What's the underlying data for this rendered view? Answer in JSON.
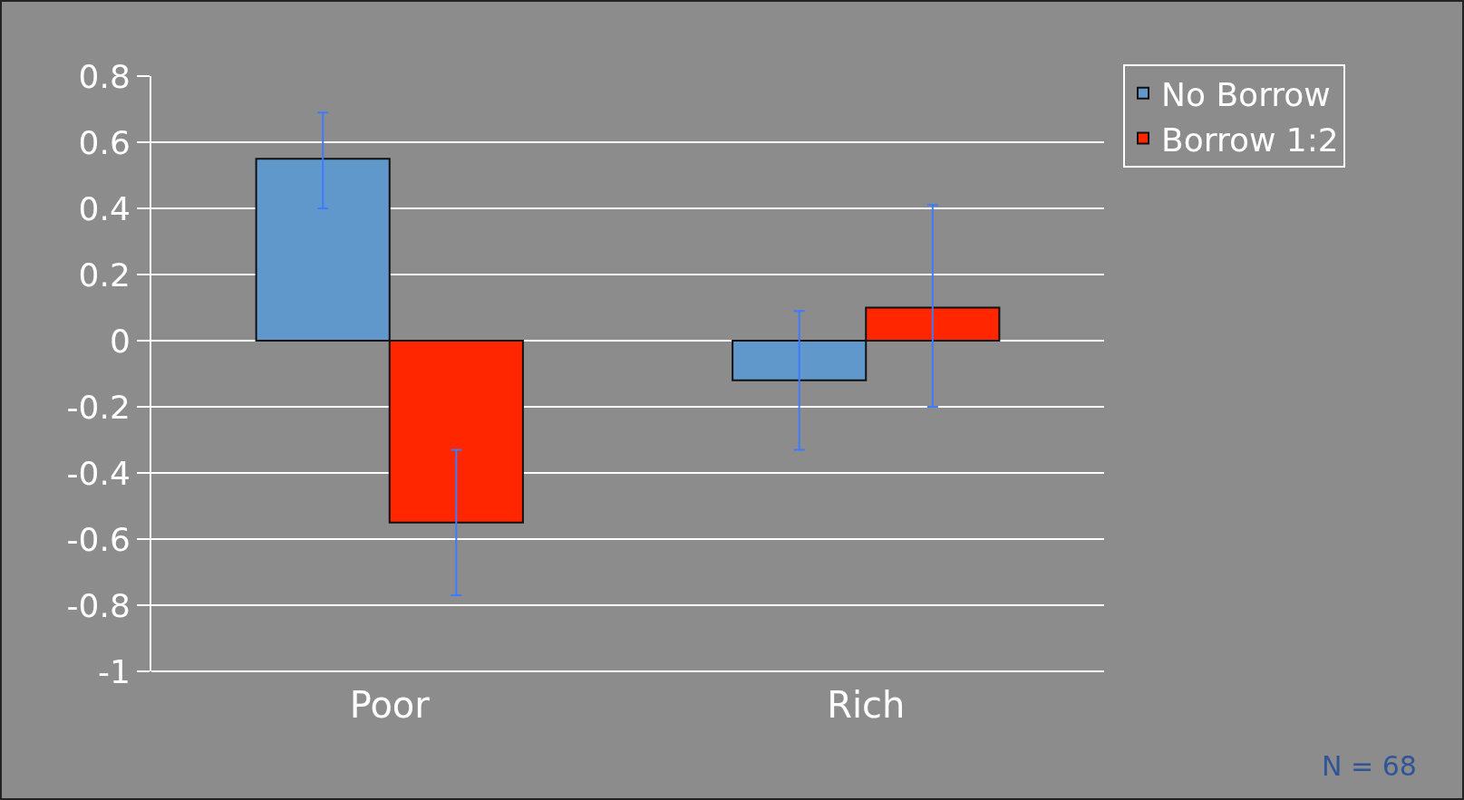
{
  "chart_data": {
    "type": "bar",
    "categories": [
      "Poor",
      "Rich"
    ],
    "series": [
      {
        "name": "No Borrow",
        "color": "#6098cc",
        "values": [
          0.55,
          -0.12
        ],
        "errors": [
          [
            0.4,
            0.69
          ],
          [
            -0.33,
            0.09
          ]
        ]
      },
      {
        "name": "Borrow 1:2",
        "color": "#ff2600",
        "values": [
          -0.55,
          0.1
        ],
        "errors": [
          [
            -0.77,
            -0.33
          ],
          [
            -0.2,
            0.41
          ]
        ]
      }
    ],
    "ylim": [
      -1,
      0.8
    ],
    "yticks": [
      -1,
      -0.8,
      -0.6,
      -0.4,
      -0.2,
      0,
      0.2,
      0.4,
      0.6,
      0.8
    ],
    "grid": "y",
    "legend": "top right",
    "annotations": [
      "N = 68"
    ]
  }
}
